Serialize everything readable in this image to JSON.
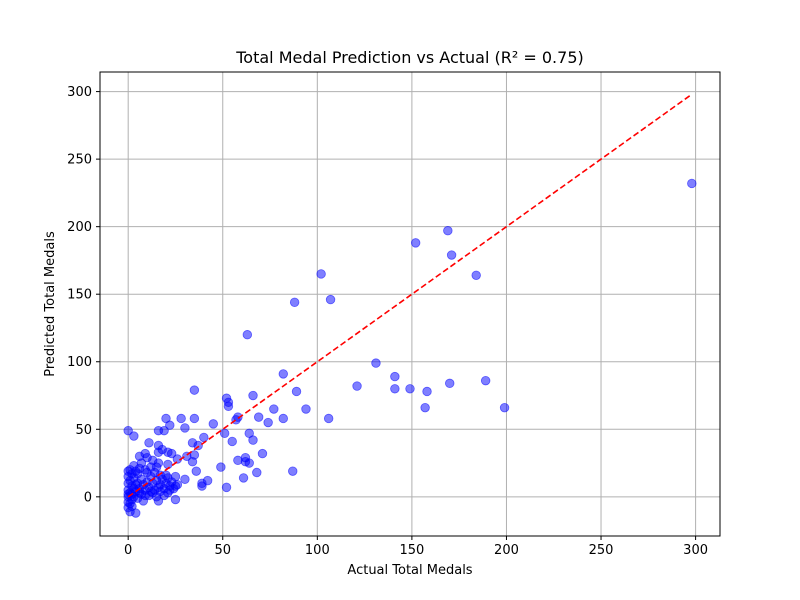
{
  "chart_data": {
    "type": "scatter",
    "title": "Total Medal Prediction vs Actual (R² = 0.75)",
    "xlabel": "Actual Total Medals",
    "ylabel": "Predicted Total Medals",
    "xlim": [
      -14.9,
      312.9
    ],
    "ylim": [
      -29,
      314.5
    ],
    "xticks": [
      0,
      50,
      100,
      150,
      200,
      250,
      300
    ],
    "yticks": [
      0,
      50,
      100,
      150,
      200,
      250,
      300
    ],
    "grid": true,
    "point_color": "#0000ff",
    "point_opacity": 0.5,
    "reference_line": {
      "x": [
        0,
        298
      ],
      "y": [
        0,
        298
      ],
      "color": "#ff0000",
      "style": "dashed"
    },
    "points": [
      [
        298,
        232
      ],
      [
        169,
        197
      ],
      [
        152,
        188
      ],
      [
        171,
        179
      ],
      [
        102,
        165
      ],
      [
        184,
        164
      ],
      [
        107,
        146
      ],
      [
        88,
        144
      ],
      [
        63,
        120
      ],
      [
        131,
        99
      ],
      [
        82,
        91
      ],
      [
        141,
        89
      ],
      [
        189,
        86
      ],
      [
        170,
        84
      ],
      [
        121,
        82
      ],
      [
        141,
        80
      ],
      [
        149,
        80
      ],
      [
        158,
        78
      ],
      [
        35,
        79
      ],
      [
        89,
        78
      ],
      [
        66,
        75
      ],
      [
        52,
        73
      ],
      [
        53,
        70
      ],
      [
        53,
        67
      ],
      [
        94,
        65
      ],
      [
        77,
        65
      ],
      [
        157,
        66
      ],
      [
        199,
        66
      ],
      [
        69,
        59
      ],
      [
        106,
        58
      ],
      [
        82,
        58
      ],
      [
        74,
        55
      ],
      [
        58,
        59
      ],
      [
        57,
        57
      ],
      [
        20,
        58
      ],
      [
        28,
        58
      ],
      [
        35,
        58
      ],
      [
        45,
        54
      ],
      [
        22,
        53
      ],
      [
        30,
        51
      ],
      [
        16,
        49
      ],
      [
        19,
        49
      ],
      [
        0,
        49
      ],
      [
        64,
        47
      ],
      [
        51,
        47
      ],
      [
        3,
        45
      ],
      [
        40,
        44
      ],
      [
        66,
        42
      ],
      [
        55,
        41
      ],
      [
        11,
        40
      ],
      [
        34,
        40
      ],
      [
        37,
        38
      ],
      [
        16,
        38
      ],
      [
        18,
        35
      ],
      [
        16,
        33
      ],
      [
        21,
        33
      ],
      [
        23,
        32
      ],
      [
        9,
        32
      ],
      [
        71,
        32
      ],
      [
        35,
        31
      ],
      [
        31,
        30
      ],
      [
        6,
        30
      ],
      [
        10,
        29
      ],
      [
        62,
        29
      ],
      [
        58,
        27
      ],
      [
        62,
        26
      ],
      [
        64,
        25
      ],
      [
        26,
        28
      ],
      [
        13,
        27
      ],
      [
        34,
        26
      ],
      [
        16,
        25
      ],
      [
        7,
        25
      ],
      [
        3,
        23
      ],
      [
        21,
        24
      ],
      [
        15,
        22
      ],
      [
        49,
        22
      ],
      [
        36,
        19
      ],
      [
        68,
        18
      ],
      [
        87,
        19
      ],
      [
        4,
        19
      ],
      [
        0,
        19
      ],
      [
        10,
        18
      ],
      [
        5,
        17
      ],
      [
        20,
        16
      ],
      [
        61,
        14
      ],
      [
        30,
        13
      ],
      [
        42,
        12
      ],
      [
        39,
        10
      ],
      [
        39,
        8
      ],
      [
        25,
        8
      ],
      [
        52,
        7
      ],
      [
        16,
        7
      ],
      [
        22,
        5
      ],
      [
        12,
        4
      ],
      [
        6,
        3
      ],
      [
        16,
        -3
      ],
      [
        25,
        -2
      ],
      [
        9,
        1
      ],
      [
        2,
        2
      ],
      [
        0,
        -4
      ],
      [
        0,
        -8
      ],
      [
        1,
        -11
      ],
      [
        4,
        -12
      ],
      [
        0,
        10
      ],
      [
        0,
        5
      ],
      [
        0,
        0
      ],
      [
        0,
        15
      ],
      [
        1,
        12
      ],
      [
        2,
        8
      ],
      [
        3,
        14
      ],
      [
        5,
        10
      ],
      [
        6,
        6
      ],
      [
        7,
        13
      ],
      [
        8,
        9
      ],
      [
        10,
        11
      ],
      [
        11,
        7
      ],
      [
        12,
        15
      ],
      [
        13,
        10
      ],
      [
        14,
        5
      ],
      [
        15,
        12
      ],
      [
        17,
        9
      ],
      [
        18,
        13
      ],
      [
        19,
        6
      ],
      [
        20,
        10
      ],
      [
        21,
        14
      ],
      [
        22,
        8
      ],
      [
        23,
        11
      ],
      [
        24,
        6
      ],
      [
        25,
        15
      ],
      [
        26,
        9
      ],
      [
        4,
        4
      ],
      [
        3,
        0
      ],
      [
        1,
        -5
      ],
      [
        2,
        -2
      ],
      [
        5,
        -1
      ],
      [
        7,
        2
      ],
      [
        8,
        -3
      ],
      [
        9,
        5
      ],
      [
        11,
        1
      ],
      [
        13,
        3
      ],
      [
        15,
        0
      ],
      [
        17,
        4
      ],
      [
        19,
        1
      ],
      [
        21,
        3
      ],
      [
        6,
        21
      ],
      [
        9,
        20
      ],
      [
        12,
        22
      ],
      [
        14,
        18
      ],
      [
        17,
        16
      ],
      [
        1,
        20
      ],
      [
        2,
        17
      ],
      [
        3,
        6
      ],
      [
        0,
        2
      ],
      [
        1,
        3
      ],
      [
        2,
        -7
      ],
      [
        4,
        9
      ]
    ]
  }
}
